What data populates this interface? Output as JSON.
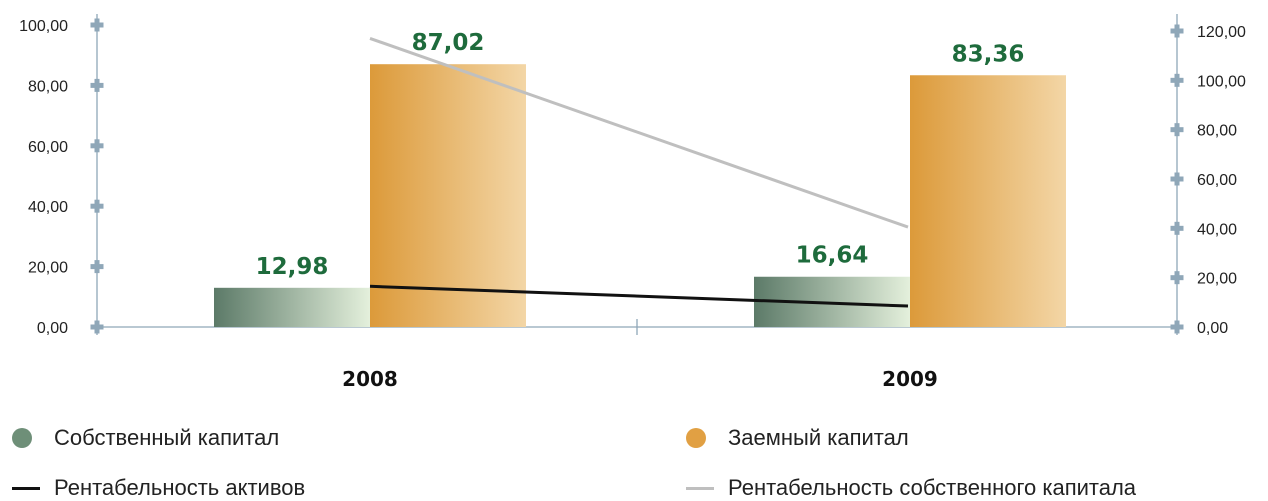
{
  "chart_data": {
    "type": "bar",
    "categories": [
      "2008",
      "2009"
    ],
    "series": [
      {
        "name": "Собственный капитал",
        "values": [
          12.98,
          16.64
        ],
        "labels": [
          "12,98",
          "16,64"
        ],
        "axis": "left",
        "color": "#5f7d6a"
      },
      {
        "name": "Заемный капитал",
        "values": [
          87.02,
          83.36
        ],
        "labels": [
          "87,02",
          "83,36"
        ],
        "axis": "left",
        "color": "#e1a043"
      },
      {
        "name": "Рентабельность активов",
        "type": "line",
        "values": [
          16.5,
          8.5
        ],
        "axis": "right",
        "color": "#111111"
      },
      {
        "name": "Рентабельность собственного капитала",
        "type": "line",
        "values": [
          117.0,
          40.5
        ],
        "axis": "right",
        "color": "#bfbfbf"
      }
    ],
    "y_left": {
      "min": 0,
      "max": 100,
      "ticks": [
        "0,00",
        "20,00",
        "40,00",
        "60,00",
        "80,00",
        "100,00"
      ]
    },
    "y_right": {
      "min": 0,
      "max": 120,
      "ticks": [
        "0,00",
        "20,00",
        "40,00",
        "60,00",
        "80,00",
        "100,00",
        "120,00"
      ]
    },
    "axis_color": "#8fa7b8",
    "label_color": "#1e6b3c",
    "legend_position": "bottom"
  },
  "legend": [
    {
      "label": "Собственный капитал",
      "marker": "dot",
      "color": "#6e8f78"
    },
    {
      "label": "Заемный капитал",
      "marker": "dot",
      "color": "#e1a043"
    },
    {
      "label": "Рентабельность активов",
      "marker": "line",
      "color": "#111111"
    },
    {
      "label": "Рентабельность собственного капитала",
      "marker": "line",
      "color": "#bfbfbf"
    }
  ]
}
